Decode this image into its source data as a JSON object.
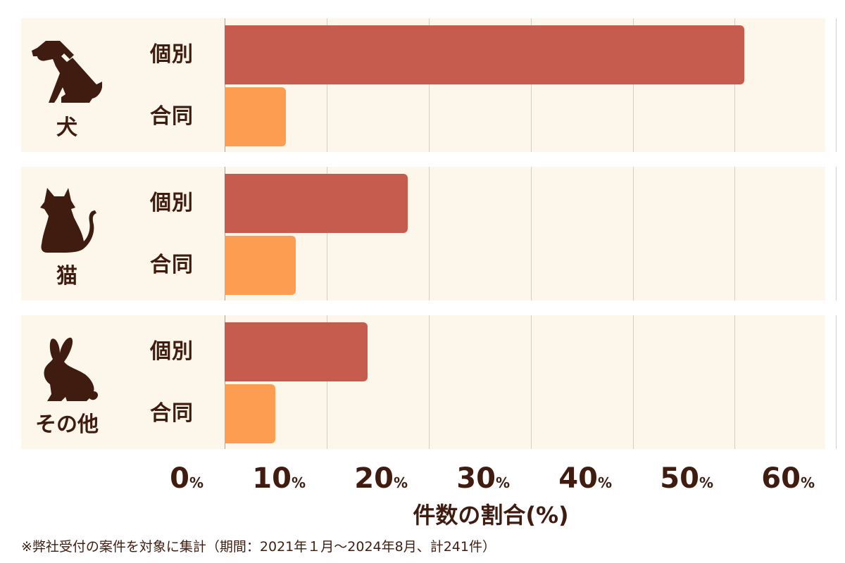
{
  "chart_data": {
    "type": "bar",
    "orientation": "horizontal",
    "title": "",
    "xlabel": "件数の割合(%)",
    "ylabel": "",
    "xlim": [
      0,
      60
    ],
    "x_ticks": [
      0,
      10,
      20,
      30,
      40,
      50,
      60
    ],
    "x_tick_labels": [
      "0%",
      "10%",
      "20%",
      "30%",
      "40%",
      "50%",
      "60%"
    ],
    "grid": true,
    "legend": "none (sub-labels 個別 / 合同 shown next to each bar)",
    "categories": [
      "犬",
      "猫",
      "その他"
    ],
    "series": [
      {
        "name": "個別",
        "color": "#c65c4e",
        "values": [
          51,
          18,
          14
        ]
      },
      {
        "name": "合同",
        "color": "#fd9d51",
        "values": [
          6,
          7,
          5
        ]
      }
    ],
    "footnote": "※弊社受付の案件を対象に集計（期間：2021年１月〜2024年8月、計241件）"
  },
  "groups": [
    {
      "label": "犬",
      "icon": "dog-icon",
      "bars": [
        {
          "label": "個別",
          "value": 51
        },
        {
          "label": "合同",
          "value": 6
        }
      ]
    },
    {
      "label": "猫",
      "icon": "cat-icon",
      "bars": [
        {
          "label": "個別",
          "value": 18
        },
        {
          "label": "合同",
          "value": 7
        }
      ]
    },
    {
      "label": "その他",
      "icon": "rabbit-icon",
      "bars": [
        {
          "label": "個別",
          "value": 14
        },
        {
          "label": "合同",
          "value": 5
        }
      ]
    }
  ],
  "axis": {
    "ticks": [
      {
        "num": "0",
        "unit": "%"
      },
      {
        "num": "10",
        "unit": "%"
      },
      {
        "num": "20",
        "unit": "%"
      },
      {
        "num": "30",
        "unit": "%"
      },
      {
        "num": "40",
        "unit": "%"
      },
      {
        "num": "50",
        "unit": "%"
      },
      {
        "num": "60",
        "unit": "%"
      }
    ],
    "title": "件数の割合(%)"
  },
  "footnote": "※弊社受付の案件を対象に集計（期間：2021年１月〜2024年8月、計241件）",
  "colors": {
    "kobetsu": "#c65c4e",
    "godo": "#fd9d51",
    "panel_bg": "#fcf7ea",
    "text": "#3f1c0f"
  }
}
